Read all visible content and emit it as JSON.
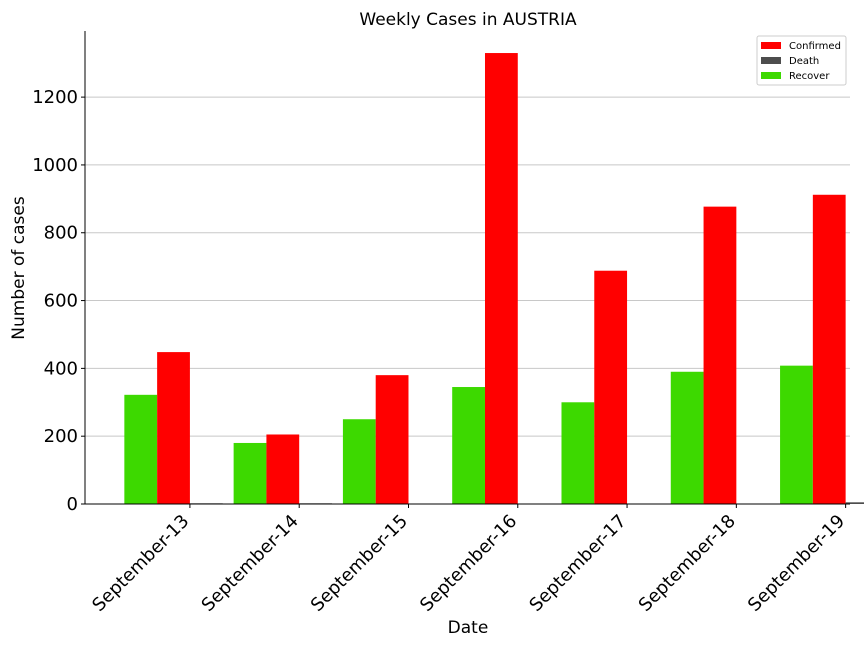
{
  "chart_data": {
    "type": "bar",
    "title": "Weekly Cases in AUSTRIA",
    "xlabel": "Date",
    "ylabel": "Number of cases",
    "categories": [
      "September-13",
      "September-14",
      "September-15",
      "September-16",
      "September-17",
      "September-18",
      "September-19"
    ],
    "series": [
      {
        "name": "Recover",
        "color": "#3dd900",
        "values": [
          322,
          180,
          250,
          345,
          300,
          390,
          408
        ]
      },
      {
        "name": "Confirmed",
        "color": "#ff0000",
        "values": [
          448,
          205,
          380,
          1330,
          688,
          877,
          912
        ]
      },
      {
        "name": "Death",
        "color": "#4d4d4d",
        "values": [
          2,
          2,
          0,
          0,
          0,
          0,
          5
        ]
      }
    ],
    "legend_order": [
      "Confirmed",
      "Death",
      "Recover"
    ],
    "yticks": [
      0,
      200,
      400,
      600,
      800,
      1000,
      1200
    ],
    "ylim": [
      0,
      1395
    ],
    "grid": "y",
    "legend_position": "top-right"
  }
}
